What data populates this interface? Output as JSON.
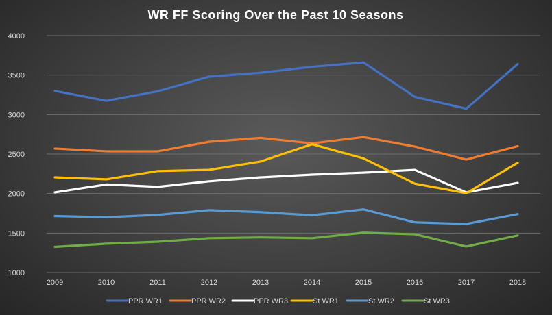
{
  "chart_data": {
    "type": "line",
    "title": "WR FF Scoring  Over the Past 10 Seasons",
    "xlabel": "",
    "ylabel": "",
    "x": [
      "2009",
      "2010",
      "2011",
      "2012",
      "2013",
      "2014",
      "2015",
      "2016",
      "2017",
      "2018"
    ],
    "ylim": [
      1000,
      4000
    ],
    "yticks": [
      "1000",
      "1500",
      "2000",
      "2500",
      "3000",
      "3500",
      "4000"
    ],
    "grid": true,
    "legend_position": "bottom",
    "series": [
      {
        "name": "PPR WR1",
        "color": "#4472c4",
        "values": [
          3300,
          3175,
          3295,
          3480,
          3530,
          3605,
          3660,
          3225,
          3075,
          3640
        ]
      },
      {
        "name": "PPR WR2",
        "color": "#ed7d31",
        "values": [
          2570,
          2535,
          2535,
          2655,
          2705,
          2635,
          2715,
          2595,
          2430,
          2600
        ]
      },
      {
        "name": "PPR WR3",
        "color": "#ffffff",
        "values": [
          2015,
          2115,
          2085,
          2155,
          2205,
          2240,
          2265,
          2300,
          2015,
          2135
        ]
      },
      {
        "name": "St WR1",
        "color": "#ffc000",
        "values": [
          2205,
          2180,
          2285,
          2300,
          2405,
          2625,
          2445,
          2125,
          2005,
          2390
        ]
      },
      {
        "name": "St WR2",
        "color": "#5b9bd5",
        "values": [
          1715,
          1700,
          1730,
          1790,
          1765,
          1725,
          1800,
          1635,
          1615,
          1740
        ]
      },
      {
        "name": "St WR3",
        "color": "#70ad47",
        "values": [
          1325,
          1365,
          1390,
          1435,
          1445,
          1435,
          1505,
          1485,
          1330,
          1470
        ]
      }
    ]
  }
}
